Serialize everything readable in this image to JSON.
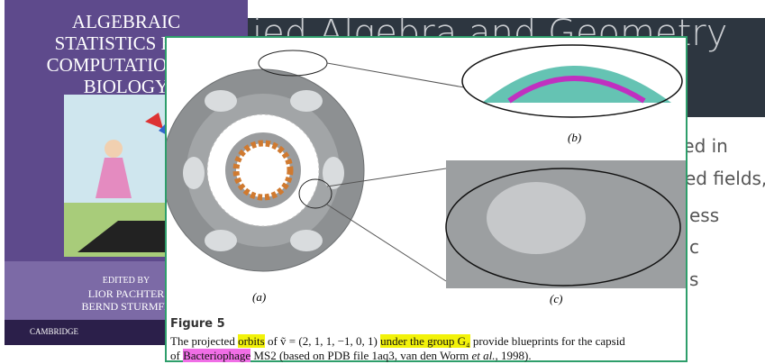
{
  "book": {
    "title_lines": [
      "ALGEBRAIC",
      "STATISTICS FOR",
      "COMPUTATIONAL",
      "BIOLOGY"
    ],
    "edited_by": "EDITED BY",
    "editors": [
      "LIOR PACHTER",
      "BERND STURMFE"
    ],
    "publisher": "CAMBRIDGE"
  },
  "slide": {
    "title": "ied Algebra and Geometry",
    "lines": [
      "sted in",
      "ed fields,",
      "ess",
      "c",
      "s"
    ]
  },
  "figure": {
    "panel_labels": [
      "(a)",
      "(b)",
      "(c)"
    ],
    "label": "Figure 5",
    "caption_lines": [
      [
        {
          "text": "The projected "
        },
        {
          "text": "orbits",
          "highlight": "#f2f20a"
        },
        {
          "text": " of ṽ = (2, 1, 1, −1, 0, 1) "
        },
        {
          "text": "under the group G₄",
          "highlight": "#f2f20a"
        },
        {
          "text": " provide blueprints for the capsid"
        }
      ],
      [
        {
          "text": "of "
        },
        {
          "text": "Bacteriophage",
          "highlight": "#f06ee6"
        },
        {
          "text": " MS2 (based on PDB file 1aq3, van den Worm "
        },
        {
          "text": "et al.",
          "italic": true
        },
        {
          "text": ", 1998)."
        }
      ]
    ]
  }
}
